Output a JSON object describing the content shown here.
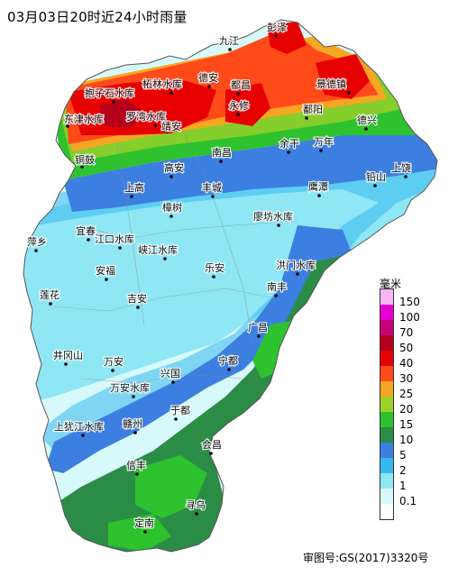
{
  "title": "03月03日20时近24小时雨量",
  "approval_number": "审图号:GS(2017)3320号",
  "legend": {
    "unit": "毫米",
    "items": [
      {
        "label": "150",
        "color": "#f7b6f2"
      },
      {
        "label": "100",
        "color": "#e600d2"
      },
      {
        "label": "70",
        "color": "#c8007a"
      },
      {
        "label": "50",
        "color": "#b5001b"
      },
      {
        "label": "40",
        "color": "#e60000"
      },
      {
        "label": "30",
        "color": "#ff4a1a"
      },
      {
        "label": "25",
        "color": "#f5a623"
      },
      {
        "label": "20",
        "color": "#9bd12a"
      },
      {
        "label": "15",
        "color": "#2ec22e"
      },
      {
        "label": "10",
        "color": "#2b8c46"
      },
      {
        "label": "5",
        "color": "#3d7fe0"
      },
      {
        "label": "2",
        "color": "#36b8ef"
      },
      {
        "label": "1",
        "color": "#8fe6f5"
      },
      {
        "label": "0.1",
        "color": "#d8f9fb"
      },
      {
        "label": "",
        "color": "#ffffff"
      }
    ]
  },
  "cities": [
    {
      "id": "jiujiang",
      "name": "九江"
    },
    {
      "id": "pengze",
      "name": "彭泽"
    },
    {
      "id": "zhelin",
      "name": "柘林水库"
    },
    {
      "id": "dean",
      "name": "德安"
    },
    {
      "id": "baozi",
      "name": "抱子石水库"
    },
    {
      "id": "duchang",
      "name": "都昌"
    },
    {
      "id": "jingdezhen",
      "name": "景德镇"
    },
    {
      "id": "dongjin",
      "name": "东津水库"
    },
    {
      "id": "luowan",
      "name": "罗湾水库"
    },
    {
      "id": "yongxiu",
      "name": "永修"
    },
    {
      "id": "jingan",
      "name": "靖安"
    },
    {
      "id": "poyang",
      "name": "鄱阳"
    },
    {
      "id": "dexing",
      "name": "德兴"
    },
    {
      "id": "tonggu",
      "name": "铜鼓"
    },
    {
      "id": "yugan",
      "name": "余干"
    },
    {
      "id": "wannian",
      "name": "万年"
    },
    {
      "id": "nanchang",
      "name": "南昌"
    },
    {
      "id": "gaoan",
      "name": "高安"
    },
    {
      "id": "shangrao",
      "name": "上饶"
    },
    {
      "id": "yingtan",
      "name": "鹰潭"
    },
    {
      "id": "qianshan",
      "name": "铅山"
    },
    {
      "id": "shanggao",
      "name": "上高"
    },
    {
      "id": "fengcheng",
      "name": "丰城"
    },
    {
      "id": "zhangshu",
      "name": "樟树"
    },
    {
      "id": "liaofang",
      "name": "廖坊水库"
    },
    {
      "id": "yichun",
      "name": "宜春"
    },
    {
      "id": "jiangkou",
      "name": "江口水库"
    },
    {
      "id": "pingxiang",
      "name": "萍乡"
    },
    {
      "id": "xiajiang",
      "name": "峡江水库"
    },
    {
      "id": "anfu",
      "name": "安福"
    },
    {
      "id": "lean",
      "name": "乐安"
    },
    {
      "id": "hongmen",
      "name": "洪门水库"
    },
    {
      "id": "nanfeng",
      "name": "南丰"
    },
    {
      "id": "lianhua",
      "name": "莲花"
    },
    {
      "id": "jian",
      "name": "吉安"
    },
    {
      "id": "guangchang",
      "name": "广昌"
    },
    {
      "id": "jinggangshan",
      "name": "井冈山"
    },
    {
      "id": "wanan",
      "name": "万安"
    },
    {
      "id": "ningdu",
      "name": "宁都"
    },
    {
      "id": "xingguo",
      "name": "兴国"
    },
    {
      "id": "wanan_res",
      "name": "万安水库"
    },
    {
      "id": "yudu",
      "name": "于都"
    },
    {
      "id": "shangyou",
      "name": "上犹江水库"
    },
    {
      "id": "ganzhou",
      "name": "赣州"
    },
    {
      "id": "huichang",
      "name": "会昌"
    },
    {
      "id": "xinfeng",
      "name": "信丰"
    },
    {
      "id": "xunwu",
      "name": "寻乌"
    },
    {
      "id": "dingnan",
      "name": "定南"
    }
  ]
}
